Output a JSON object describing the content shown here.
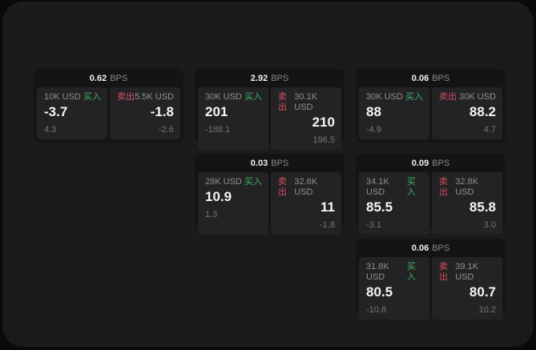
{
  "labels": {
    "buy": "买入",
    "sell": "卖出",
    "bps_unit": "BPS"
  },
  "colors": {
    "background": "#0a0a0a",
    "panel_bg": "#1b1b1d",
    "card_bg": "#141414",
    "tile_bg": "#232325",
    "buy_green": "#41b05e",
    "sell_red": "#d44f5b"
  },
  "cards": [
    {
      "bps": "0.62",
      "buy": {
        "size": "10K USD",
        "value": "-3.7",
        "delta": "4.3"
      },
      "sell": {
        "size": "5.5K USD",
        "value": "-1.8",
        "delta": "-2.6"
      }
    },
    {
      "bps": "2.92",
      "buy": {
        "size": "30K USD",
        "value": "201",
        "delta": "-188.1"
      },
      "sell": {
        "size": "30.1K USD",
        "value": "210",
        "delta": "196.5"
      }
    },
    {
      "bps": "0.06",
      "buy": {
        "size": "30K USD",
        "value": "88",
        "delta": "-4.9"
      },
      "sell": {
        "size": "30K USD",
        "value": "88.2",
        "delta": "4.7"
      }
    },
    {
      "bps": "0.03",
      "buy": {
        "size": "28K USD",
        "value": "10.9",
        "delta": "1.3"
      },
      "sell": {
        "size": "32.6K USD",
        "value": "11",
        "delta": "-1.8"
      }
    },
    {
      "bps": "0.09",
      "buy": {
        "size": "34.1K USD",
        "value": "85.5",
        "delta": "-3.1"
      },
      "sell": {
        "size": "32.8K USD",
        "value": "85.8",
        "delta": "3.0"
      }
    },
    {
      "bps": "0.06",
      "buy": {
        "size": "31.8K USD",
        "value": "80.5",
        "delta": "-10.8"
      },
      "sell": {
        "size": "39.1K USD",
        "value": "80.7",
        "delta": "10.2"
      }
    }
  ]
}
